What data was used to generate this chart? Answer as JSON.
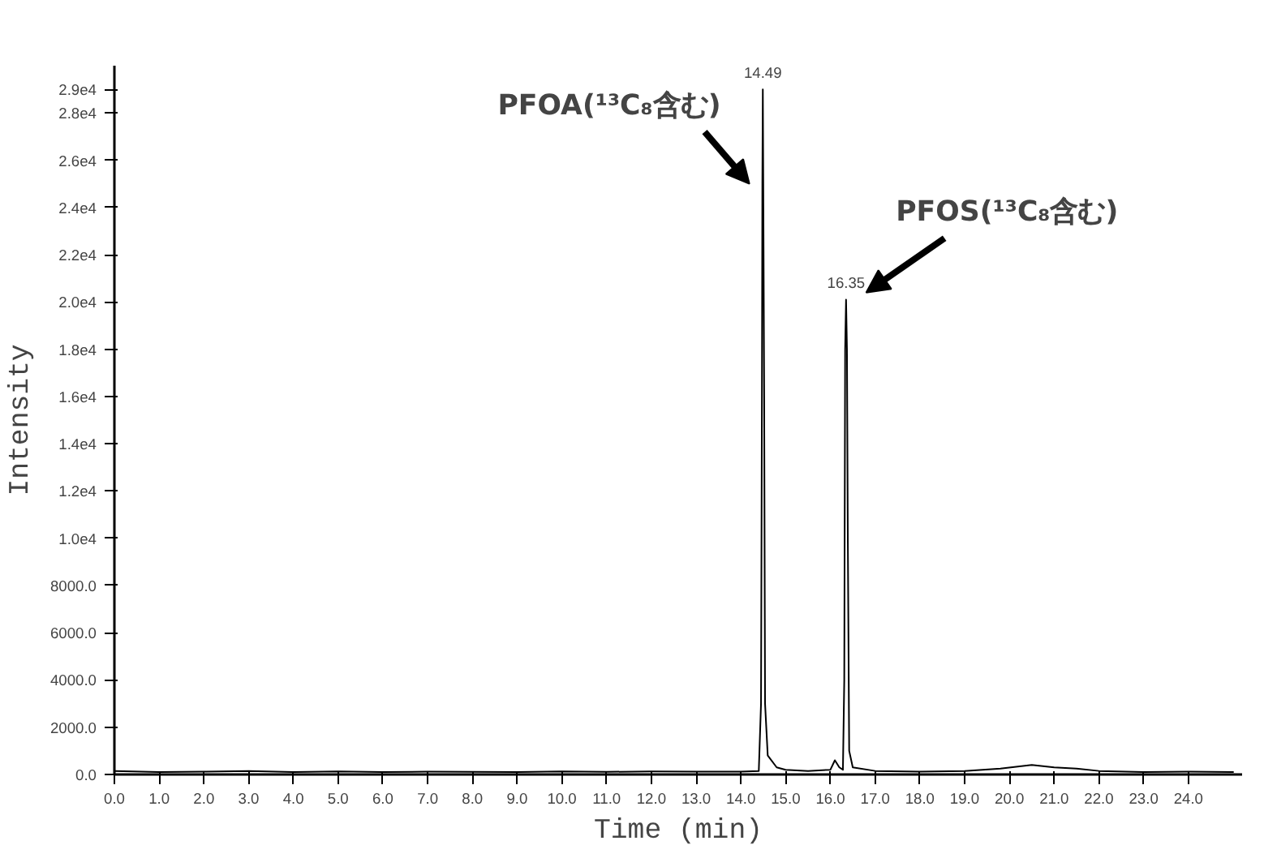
{
  "chart_data": {
    "type": "line",
    "xlabel": "Time (min)",
    "ylabel": "Intensity",
    "x": [
      0,
      1,
      2,
      3,
      4,
      5,
      6,
      7,
      8,
      9,
      10,
      11,
      12,
      13,
      14.0,
      14.4,
      14.45,
      14.47,
      14.48,
      14.49,
      14.5,
      14.52,
      14.54,
      14.6,
      14.8,
      15.0,
      15.5,
      16.0,
      16.1,
      16.2,
      16.28,
      16.31,
      16.33,
      16.35,
      16.37,
      16.39,
      16.42,
      16.5,
      17,
      18,
      19,
      19.8,
      20.5,
      21,
      21.5,
      22,
      23,
      24,
      25
    ],
    "series": [
      {
        "color": "#000000",
        "values": [
          150,
          100,
          120,
          150,
          100,
          130,
          100,
          120,
          110,
          100,
          130,
          110,
          130,
          120,
          120,
          150,
          3000,
          16000,
          25000,
          29000,
          25000,
          16000,
          3000,
          800,
          300,
          200,
          150,
          200,
          600,
          300,
          200,
          4000,
          18000,
          20100,
          18000,
          9800,
          1000,
          300,
          150,
          120,
          150,
          250,
          400,
          300,
          250,
          150,
          100,
          120,
          100
        ]
      }
    ],
    "xlim": [
      0,
      25.2
    ],
    "ylim": [
      0,
      30000
    ],
    "xticks": [
      {
        "value": 0,
        "label": "0.0"
      },
      {
        "value": 1,
        "label": "1.0"
      },
      {
        "value": 2,
        "label": "2.0"
      },
      {
        "value": 3,
        "label": "3.0"
      },
      {
        "value": 4,
        "label": "4.0"
      },
      {
        "value": 5,
        "label": "5.0"
      },
      {
        "value": 6,
        "label": "6.0"
      },
      {
        "value": 7,
        "label": "7.0"
      },
      {
        "value": 8,
        "label": "8.0"
      },
      {
        "value": 9,
        "label": "9.0"
      },
      {
        "value": 10,
        "label": "10.0"
      },
      {
        "value": 11,
        "label": "11.0"
      },
      {
        "value": 12,
        "label": "12.0"
      },
      {
        "value": 13,
        "label": "13.0"
      },
      {
        "value": 14,
        "label": "14.0"
      },
      {
        "value": 15,
        "label": "15.0"
      },
      {
        "value": 16,
        "label": "16.0"
      },
      {
        "value": 17,
        "label": "17.0"
      },
      {
        "value": 18,
        "label": "18.0"
      },
      {
        "value": 19,
        "label": "19.0"
      },
      {
        "value": 20,
        "label": "20.0"
      },
      {
        "value": 21,
        "label": "21.0"
      },
      {
        "value": 22,
        "label": "22.0"
      },
      {
        "value": 23,
        "label": "23.0"
      },
      {
        "value": 24,
        "label": "24.0"
      }
    ],
    "yticks": [
      {
        "value": 0,
        "label": "0.0"
      },
      {
        "value": 2000,
        "label": "2000.0"
      },
      {
        "value": 4000,
        "label": "4000.0"
      },
      {
        "value": 6000,
        "label": "6000.0"
      },
      {
        "value": 8000,
        "label": "8000.0"
      },
      {
        "value": 10000,
        "label": "1.0e4"
      },
      {
        "value": 12000,
        "label": "1.2e4"
      },
      {
        "value": 14000,
        "label": "1.4e4"
      },
      {
        "value": 16000,
        "label": "1.6e4"
      },
      {
        "value": 18000,
        "label": "1.8e4"
      },
      {
        "value": 20000,
        "label": "2.0e4"
      },
      {
        "value": 22000,
        "label": "2.2e4"
      },
      {
        "value": 24000,
        "label": "2.4e4"
      },
      {
        "value": 26000,
        "label": "2.6e4"
      },
      {
        "value": 28000,
        "label": "2.8e4"
      },
      {
        "value": 29000,
        "label": "2.9e4"
      }
    ],
    "annotations": [
      {
        "text": "14.49",
        "x": 14.49,
        "y": 29000
      },
      {
        "text": "16.35",
        "x": 16.35,
        "y": 20100
      },
      "PFOA(¹³C₈含む)",
      "PFOS(¹³C₈含む)"
    ],
    "grid": false,
    "marker": "none",
    "line_style": "solid"
  }
}
